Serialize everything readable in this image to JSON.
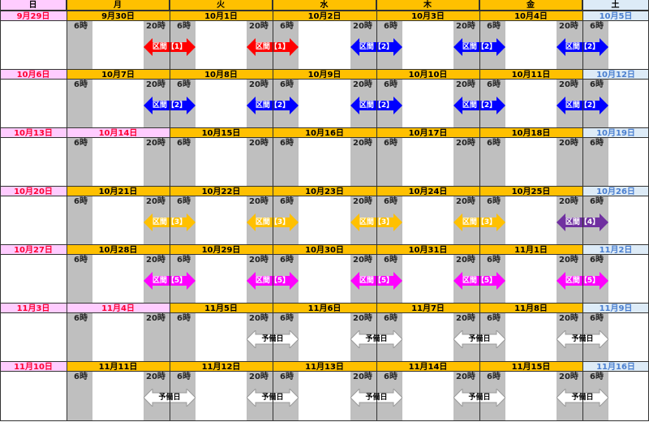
{
  "header": {
    "days": [
      "日",
      "月",
      "火",
      "水",
      "木",
      "金",
      "土"
    ]
  },
  "time_labels": {
    "morning": "6時",
    "night": "20時"
  },
  "colors": {
    "weekday_header": "#FFC000",
    "holiday_bg": "#FFCCFF",
    "holiday_text": "#FF0033",
    "saturday_bg": "#DDEBF7",
    "saturday_text": "#4A7FD0",
    "night_band": "#BFBFBF"
  },
  "arrow_styles": {
    "区間【1】": {
      "fill": "#FF0000",
      "text": "#FFFFFF"
    },
    "区間【2】": {
      "fill": "#0000FF",
      "text": "#FFFFFF"
    },
    "区間【3】": {
      "fill": "#FFC000",
      "text": "#FFFFFF"
    },
    "区間【4】": {
      "fill": "#7030A0",
      "text": "#FFFFFF"
    },
    "区間【5】": {
      "fill": "#FF00FF",
      "text": "#FFFFFF"
    },
    "予備日": {
      "fill": "#FFFFFF",
      "text": "#000000",
      "stroke": "#999999"
    }
  },
  "weeks": [
    {
      "dates": [
        "9月29日",
        "9月30日",
        "10月1日",
        "10月2日",
        "10月3日",
        "10月4日",
        "10月5日"
      ],
      "holidays": [
        0
      ],
      "arrows": [
        {
          "night_of": 1,
          "label": "区間【1】"
        },
        {
          "night_of": 2,
          "label": "区間【1】"
        },
        {
          "night_of": 3,
          "label": "区間【2】"
        },
        {
          "night_of": 4,
          "label": "区間【2】"
        },
        {
          "night_of": 5,
          "label": "区間【2】"
        }
      ]
    },
    {
      "dates": [
        "10月6日",
        "10月7日",
        "10月8日",
        "10月9日",
        "10月10日",
        "10月11日",
        "10月12日"
      ],
      "holidays": [
        0
      ],
      "arrows": [
        {
          "night_of": 1,
          "label": "区間【2】"
        },
        {
          "night_of": 2,
          "label": "区間【2】"
        },
        {
          "night_of": 3,
          "label": "区間【2】"
        },
        {
          "night_of": 4,
          "label": "区間【2】"
        },
        {
          "night_of": 5,
          "label": "区間【2】"
        }
      ]
    },
    {
      "dates": [
        "10月13日",
        "10月14日",
        "10月15日",
        "10月16日",
        "10月17日",
        "10月18日",
        "10月19日"
      ],
      "holidays": [
        0,
        1
      ],
      "arrows": []
    },
    {
      "dates": [
        "10月20日",
        "10月21日",
        "10月22日",
        "10月23日",
        "10月24日",
        "10月25日",
        "10月26日"
      ],
      "holidays": [
        0
      ],
      "arrows": [
        {
          "night_of": 1,
          "label": "区間【3】"
        },
        {
          "night_of": 2,
          "label": "区間【3】"
        },
        {
          "night_of": 3,
          "label": "区間【3】"
        },
        {
          "night_of": 4,
          "label": "区間【3】"
        },
        {
          "night_of": 5,
          "label": "区間【4】"
        }
      ]
    },
    {
      "dates": [
        "10月27日",
        "10月28日",
        "10月29日",
        "10月30日",
        "10月31日",
        "11月1日",
        "11月2日"
      ],
      "holidays": [
        0
      ],
      "arrows": [
        {
          "night_of": 1,
          "label": "区間【5】"
        },
        {
          "night_of": 2,
          "label": "区間【5】"
        },
        {
          "night_of": 3,
          "label": "区間【5】"
        },
        {
          "night_of": 4,
          "label": "区間【5】"
        },
        {
          "night_of": 5,
          "label": "区間【5】"
        }
      ]
    },
    {
      "dates": [
        "11月3日",
        "11月4日",
        "11月5日",
        "11月6日",
        "11月7日",
        "11月8日",
        "11月9日"
      ],
      "holidays": [
        0,
        1
      ],
      "arrows": [
        {
          "night_of": 2,
          "label": "予備日"
        },
        {
          "night_of": 3,
          "label": "予備日"
        },
        {
          "night_of": 4,
          "label": "予備日"
        },
        {
          "night_of": 5,
          "label": "予備日"
        }
      ]
    },
    {
      "dates": [
        "11月10日",
        "11月11日",
        "11月12日",
        "11月13日",
        "11月14日",
        "11月15日",
        "11月16日"
      ],
      "holidays": [
        0
      ],
      "arrows": [
        {
          "night_of": 1,
          "label": "予備日"
        },
        {
          "night_of": 2,
          "label": "予備日"
        },
        {
          "night_of": 3,
          "label": "予備日"
        },
        {
          "night_of": 4,
          "label": "予備日"
        },
        {
          "night_of": 5,
          "label": "予備日"
        }
      ]
    }
  ]
}
